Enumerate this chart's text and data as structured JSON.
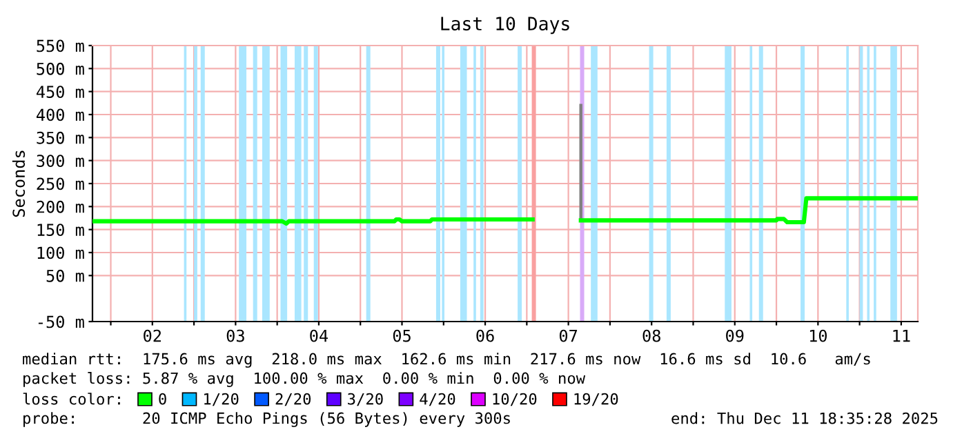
{
  "chart_data": {
    "type": "line",
    "title": "Last 10 Days",
    "ylabel": "Seconds",
    "xlim": [
      1.78,
      11.7
    ],
    "ylim": [
      -50,
      550
    ],
    "xticks": [
      {
        "value": 2,
        "label": null
      },
      {
        "value": 2.5,
        "label": "02"
      },
      {
        "value": 3,
        "label": null
      },
      {
        "value": 3.5,
        "label": "03"
      },
      {
        "value": 4,
        "label": null
      },
      {
        "value": 4.5,
        "label": "04"
      },
      {
        "value": 5,
        "label": null
      },
      {
        "value": 5.5,
        "label": "05"
      },
      {
        "value": 6,
        "label": null
      },
      {
        "value": 6.5,
        "label": "06"
      },
      {
        "value": 7,
        "label": null
      },
      {
        "value": 7.5,
        "label": "07"
      },
      {
        "value": 8,
        "label": null
      },
      {
        "value": 8.5,
        "label": "08"
      },
      {
        "value": 9,
        "label": null
      },
      {
        "value": 9.5,
        "label": "09"
      },
      {
        "value": 10,
        "label": null
      },
      {
        "value": 10.5,
        "label": "10"
      },
      {
        "value": 11,
        "label": null
      },
      {
        "value": 11.5,
        "label": "11"
      }
    ],
    "yticks": [
      {
        "value": -50,
        "label": "-50 m"
      },
      {
        "value": 50,
        "label": "50 m"
      },
      {
        "value": 100,
        "label": "100 m"
      },
      {
        "value": 150,
        "label": "150 m"
      },
      {
        "value": 200,
        "label": "200 m"
      },
      {
        "value": 250,
        "label": "250 m"
      },
      {
        "value": 300,
        "label": "300 m"
      },
      {
        "value": 350,
        "label": "350 m"
      },
      {
        "value": 400,
        "label": "400 m"
      },
      {
        "value": 450,
        "label": "450 m"
      },
      {
        "value": 500,
        "label": "500 m"
      },
      {
        "value": 550,
        "label": "550 m"
      }
    ],
    "grid": true,
    "legend": "bottom",
    "series": [
      {
        "name": "0",
        "color": "#00ff00",
        "x": [
          1.78,
          4.06,
          4.09,
          4.11,
          4.14,
          5.41,
          5.43,
          5.47,
          5.5,
          5.84,
          5.86,
          7.07,
          7.08,
          7.65,
          10.0,
          10.01,
          10.09,
          10.13,
          10.33,
          10.36,
          11.7
        ],
        "values": [
          168,
          168,
          165,
          163,
          168,
          168,
          172,
          172,
          168,
          168,
          172,
          172,
          null,
          170,
          170,
          173,
          173,
          166,
          166,
          218,
          218
        ]
      },
      {
        "color": "#808080",
        "x": [
          7.65,
          7.65
        ],
        "values": [
          170,
          420
        ]
      },
      {
        "name": "1/20",
        "color": "#00b8ff"
      },
      {
        "name": "2/20",
        "color": "#0059ff"
      },
      {
        "name": "3/20",
        "color": "#5e00ff"
      },
      {
        "name": "4/20",
        "color": "#7e00ff"
      },
      {
        "name": "10/20",
        "color": "#dd00ff"
      },
      {
        "name": "19/20",
        "color": "#ff0000"
      }
    ],
    "bands": [
      {
        "axis": "x",
        "from": 2.88,
        "to": 2.91,
        "color": "#aae6ff"
      },
      {
        "axis": "x",
        "from": 3.0,
        "to": 3.04,
        "color": "#aae6ff"
      },
      {
        "axis": "x",
        "from": 3.08,
        "to": 3.13,
        "color": "#aae6ff"
      },
      {
        "axis": "x",
        "from": 3.54,
        "to": 3.63,
        "color": "#aae6ff"
      },
      {
        "axis": "x",
        "from": 3.71,
        "to": 3.76,
        "color": "#aae6ff"
      },
      {
        "axis": "x",
        "from": 3.82,
        "to": 3.91,
        "color": "#aae6ff"
      },
      {
        "axis": "x",
        "from": 4.04,
        "to": 4.12,
        "color": "#aae6ff"
      },
      {
        "axis": "x",
        "from": 4.21,
        "to": 4.29,
        "color": "#aae6ff"
      },
      {
        "axis": "x",
        "from": 4.32,
        "to": 4.37,
        "color": "#aae6ff"
      },
      {
        "axis": "x",
        "from": 4.44,
        "to": 4.49,
        "color": "#aae6ff"
      },
      {
        "axis": "x",
        "from": 5.07,
        "to": 5.12,
        "color": "#aae6ff"
      },
      {
        "axis": "x",
        "from": 5.91,
        "to": 5.96,
        "color": "#aae6ff"
      },
      {
        "axis": "x",
        "from": 5.98,
        "to": 6.01,
        "color": "#aae6ff"
      },
      {
        "axis": "x",
        "from": 6.2,
        "to": 6.28,
        "color": "#aae6ff"
      },
      {
        "axis": "x",
        "from": 6.36,
        "to": 6.39,
        "color": "#aae6ff"
      },
      {
        "axis": "x",
        "from": 6.44,
        "to": 6.48,
        "color": "#aae6ff"
      },
      {
        "axis": "x",
        "from": 6.89,
        "to": 6.94,
        "color": "#aae6ff"
      },
      {
        "axis": "x",
        "from": 7.06,
        "to": 7.11,
        "color": "#f9a0a0"
      },
      {
        "axis": "x",
        "from": 7.64,
        "to": 7.69,
        "color": "#d8aaf8"
      },
      {
        "axis": "x",
        "from": 7.77,
        "to": 7.85,
        "color": "#aae6ff"
      },
      {
        "axis": "x",
        "from": 8.47,
        "to": 8.52,
        "color": "#aae6ff"
      },
      {
        "axis": "x",
        "from": 8.68,
        "to": 8.73,
        "color": "#aae6ff"
      },
      {
        "axis": "x",
        "from": 9.38,
        "to": 9.46,
        "color": "#aae6ff"
      },
      {
        "axis": "x",
        "from": 9.68,
        "to": 9.71,
        "color": "#aae6ff"
      },
      {
        "axis": "x",
        "from": 9.79,
        "to": 9.84,
        "color": "#aae6ff"
      },
      {
        "axis": "x",
        "from": 10.29,
        "to": 10.34,
        "color": "#aae6ff"
      },
      {
        "axis": "x",
        "from": 10.84,
        "to": 10.87,
        "color": "#aae6ff"
      },
      {
        "axis": "x",
        "from": 11.0,
        "to": 11.04,
        "color": "#aae6ff"
      },
      {
        "axis": "x",
        "from": 11.09,
        "to": 11.12,
        "color": "#aae6ff"
      },
      {
        "axis": "x",
        "from": 11.17,
        "to": 11.2,
        "color": "#aae6ff"
      },
      {
        "axis": "x",
        "from": 11.37,
        "to": 11.45,
        "color": "#aae6ff"
      }
    ],
    "annotations": [
      "median rtt:  175.6 ms avg  218.0 ms max  162.6 ms min  217.6 ms now  16.6 ms sd  10.6   am/s",
      "packet loss: 5.87 % avg  100.00 % max  0.00 % min  0.00 % now",
      "loss color:",
      "probe:       20 ICMP Echo Pings (56 Bytes) every 300s",
      "end: Thu Dec 11 18:35:28 2025"
    ]
  }
}
